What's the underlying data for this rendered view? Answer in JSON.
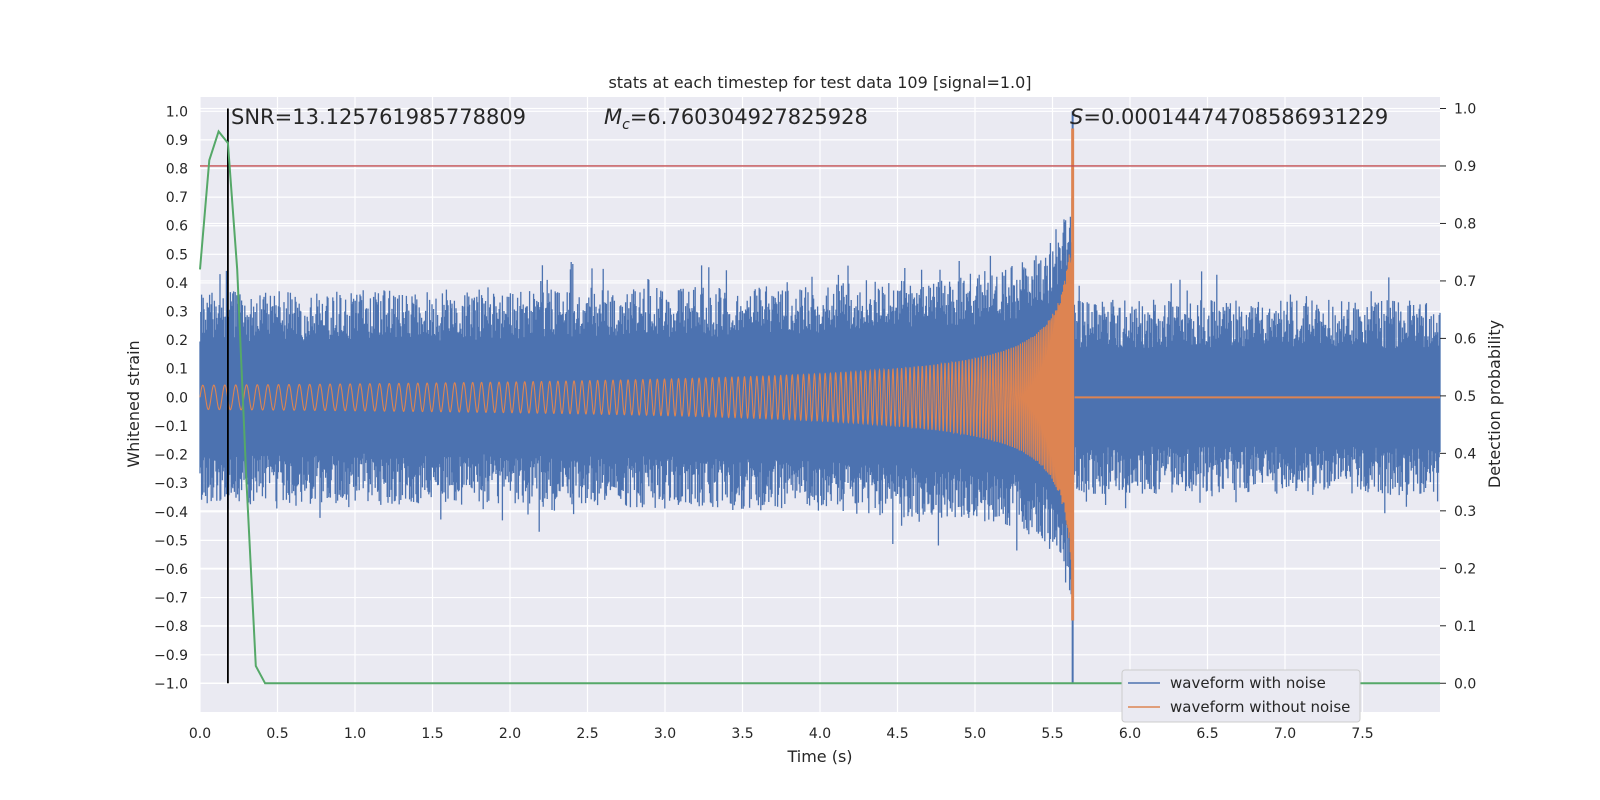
{
  "chart_data": {
    "type": "line",
    "title": "stats at each timestep for test data 109 [signal=1.0]",
    "xlabel": "Time (s)",
    "ylabel_left": "Whitened strain",
    "ylabel_right": "Detection probability",
    "xlim": [
      0.0,
      8.0
    ],
    "ylim_left": [
      -1.1,
      1.05
    ],
    "ylim_right": [
      -0.05,
      1.02
    ],
    "x_ticks": [
      "0.0",
      "0.5",
      "1.0",
      "1.5",
      "2.0",
      "2.5",
      "3.0",
      "3.5",
      "4.0",
      "4.5",
      "5.0",
      "5.5",
      "6.0",
      "6.5",
      "7.0",
      "7.5"
    ],
    "y_left_ticks": [
      "1.0",
      "0.9",
      "0.8",
      "0.7",
      "0.6",
      "0.5",
      "0.4",
      "0.3",
      "0.2",
      "0.1",
      "0.0",
      "−0.1",
      "−0.2",
      "−0.3",
      "−0.4",
      "−0.5",
      "−0.6",
      "−0.7",
      "−0.8",
      "−0.9",
      "−1.0"
    ],
    "y_right_ticks": [
      "1.0",
      "0.9",
      "0.8",
      "0.7",
      "0.6",
      "0.5",
      "0.4",
      "0.3",
      "0.2",
      "0.1",
      "0.0"
    ],
    "annotations": {
      "snr": "SNR=13.125761985778809",
      "mc_symbol": "M",
      "mc_sub": "c",
      "mc_value": "=6.760304927825928",
      "s_symbol": "S",
      "s_value": "=0.00014474708586931229"
    },
    "series": [
      {
        "name": "waveform with noise",
        "color": "#4c72b0",
        "axis": "left",
        "description_points": {
          "noise_envelope": 0.3,
          "merger_time": 5.63,
          "peak": 1.0,
          "min": -1.0
        }
      },
      {
        "name": "waveform without noise",
        "color": "#dd8452",
        "axis": "left",
        "description_points": {
          "start_amplitude": 0.05,
          "merger_time": 5.63,
          "peak": 0.94,
          "min": -0.78
        }
      },
      {
        "name": "Detection probability",
        "color": "#55a868",
        "axis": "right",
        "x": [
          0.0,
          0.06,
          0.12,
          0.18,
          0.24,
          0.3,
          0.36,
          0.42,
          8.0
        ],
        "values": [
          0.72,
          0.91,
          0.96,
          0.94,
          0.72,
          0.35,
          0.03,
          0.0,
          0.0
        ]
      }
    ],
    "threshold_line": {
      "axis": "right",
      "value": 0.9,
      "color": "#c44e52"
    },
    "event_marker": {
      "x": 0.18,
      "color": "#000000",
      "y_from": 0.0,
      "y_to": 1.0
    },
    "legend": {
      "placement": "bottom-right",
      "entries": [
        "waveform with noise",
        "waveform without noise"
      ]
    }
  }
}
